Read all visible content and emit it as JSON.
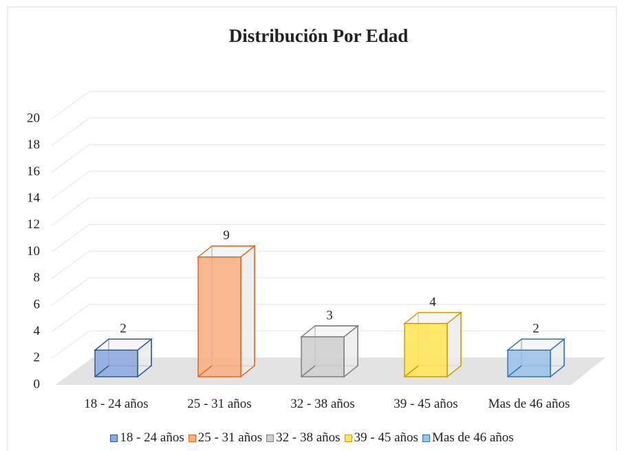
{
  "chart_data": {
    "type": "bar3d",
    "title": "Distribución Por Edad",
    "categories": [
      "18 - 24 años",
      "25 - 31 años",
      "32 - 38 años",
      "39 - 45 años",
      "Mas de 46 años"
    ],
    "values": [
      2,
      9,
      3,
      4,
      2
    ],
    "colors": [
      "#8faadc",
      "#f8b184",
      "#cfcfcf",
      "#ffe55c",
      "#9cc3e8"
    ],
    "edge_colors": [
      "#2f55a4",
      "#e06a24",
      "#7f7f7f",
      "#c9a000",
      "#2e75b6"
    ],
    "ylim": [
      0,
      20
    ],
    "yticks": [
      0,
      2,
      4,
      6,
      8,
      10,
      12,
      14,
      16,
      18,
      20
    ],
    "grid": true,
    "legend": "bottom"
  }
}
